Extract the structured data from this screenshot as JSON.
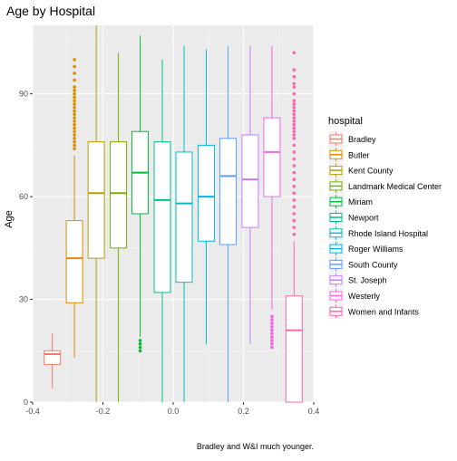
{
  "chart_data": {
    "type": "boxplot",
    "title": "Age by Hospital",
    "xlabel": "",
    "ylabel": "Age",
    "caption": "Bradley and W&I much younger.",
    "xlim": [
      -0.4,
      0.4
    ],
    "ylim": [
      0,
      110
    ],
    "x_ticks": [
      -0.4,
      -0.2,
      0.0,
      0.2,
      0.4
    ],
    "x_tick_labels": [
      "-0.4",
      "-0.2",
      "0.0",
      "0.2",
      "0.4"
    ],
    "y_ticks": [
      0,
      30,
      60,
      90
    ],
    "y_tick_labels": [
      "0",
      "30",
      "60",
      "90"
    ],
    "grid": true,
    "legend_title": "hospital",
    "legend_position": "right",
    "series": [
      {
        "name": "Bradley",
        "color": "#F8766D",
        "x": -0.344,
        "whisker_low": 4,
        "q1": 11,
        "median": 14,
        "q3": 15,
        "whisker_high": 20,
        "outliers": []
      },
      {
        "name": "Butler",
        "color": "#DE8C00",
        "x": -0.281,
        "whisker_low": 13,
        "q1": 29,
        "median": 42,
        "q3": 53,
        "whisker_high": 72,
        "outliers": [
          74,
          75,
          76,
          77,
          78,
          79,
          80,
          81,
          82,
          83,
          84,
          85,
          86,
          87,
          88,
          89,
          90,
          91,
          92,
          94,
          96,
          98,
          100
        ]
      },
      {
        "name": "Kent County",
        "color": "#B79F00",
        "x": -0.219,
        "whisker_low": 0,
        "q1": 42,
        "median": 61,
        "q3": 76,
        "whisker_high": 110,
        "outliers": []
      },
      {
        "name": "Landmark Medical Center",
        "color": "#7CAE00",
        "x": -0.156,
        "whisker_low": 0,
        "q1": 45,
        "median": 61,
        "q3": 76,
        "whisker_high": 102,
        "outliers": []
      },
      {
        "name": "Miriam",
        "color": "#00BA38",
        "x": -0.094,
        "whisker_low": 19,
        "q1": 55,
        "median": 67,
        "q3": 79,
        "whisker_high": 107,
        "outliers": [
          15,
          16,
          17,
          18
        ]
      },
      {
        "name": "Newport",
        "color": "#00C08B",
        "x": -0.031,
        "whisker_low": 0,
        "q1": 32,
        "median": 59,
        "q3": 76,
        "whisker_high": 100,
        "outliers": []
      },
      {
        "name": "Rhode Island Hospital",
        "color": "#00BFC4",
        "x": 0.031,
        "whisker_low": 0,
        "q1": 35,
        "median": 58,
        "q3": 73,
        "whisker_high": 104,
        "outliers": []
      },
      {
        "name": "Roger Williams",
        "color": "#00B4F0",
        "x": 0.094,
        "whisker_low": 17,
        "q1": 47,
        "median": 60,
        "q3": 75,
        "whisker_high": 103,
        "outliers": []
      },
      {
        "name": "South County",
        "color": "#619CFF",
        "x": 0.156,
        "whisker_low": 0,
        "q1": 46,
        "median": 66,
        "q3": 77,
        "whisker_high": 104,
        "outliers": []
      },
      {
        "name": "St. Joseph",
        "color": "#C77CFF",
        "x": 0.219,
        "whisker_low": 17,
        "q1": 51,
        "median": 65,
        "q3": 78,
        "whisker_high": 104,
        "outliers": []
      },
      {
        "name": "Westerly",
        "color": "#F564E3",
        "x": 0.281,
        "whisker_low": 27,
        "q1": 60,
        "median": 73,
        "q3": 83,
        "whisker_high": 104,
        "outliers": [
          16,
          17,
          18,
          19,
          20,
          21,
          22,
          23,
          24,
          25
        ]
      },
      {
        "name": "Women and Infants",
        "color": "#FF64B0",
        "x": 0.344,
        "whisker_low": 0,
        "q1": 0,
        "median": 21,
        "q3": 31,
        "whisker_high": 47,
        "outliers": [
          49,
          51,
          53,
          55,
          57,
          59,
          61,
          63,
          65,
          67,
          69,
          71,
          73,
          75,
          77,
          78,
          79,
          80,
          81,
          82,
          83,
          84,
          85,
          86,
          87,
          88,
          90,
          92,
          93,
          95,
          97,
          102
        ]
      }
    ]
  }
}
